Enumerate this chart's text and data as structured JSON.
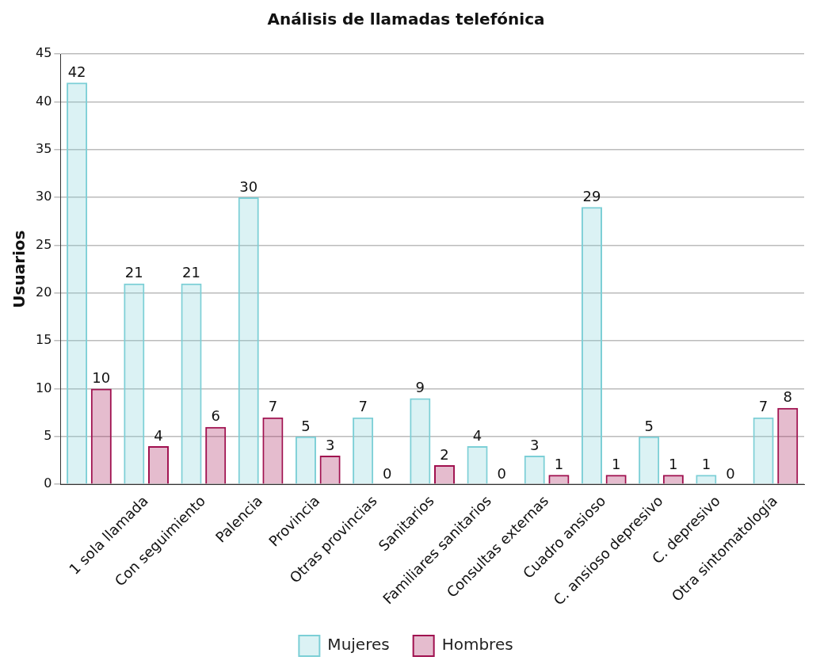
{
  "chart_data": {
    "type": "bar",
    "title": "Análisis de llamadas telefónica",
    "ylabel": "Usuarios",
    "categories": [
      null,
      "1 sola llamada",
      "Con seguimiento",
      "Palencia",
      "Provincia",
      "Otras provincias",
      "Sanitarios",
      "Familiares sanitarios",
      "Consultas externas",
      "Cuadro ansioso",
      "C. ansioso depresivo",
      "C. depresivo",
      "Otra sintomatología"
    ],
    "series": [
      {
        "name": "Mujeres",
        "color": "#7ccfd6",
        "values": [
          42,
          21,
          21,
          30,
          5,
          7,
          9,
          4,
          3,
          29,
          5,
          1,
          7
        ]
      },
      {
        "name": "Hombres",
        "color": "#a0104f",
        "values": [
          10,
          4,
          6,
          7,
          3,
          0,
          2,
          0,
          1,
          1,
          1,
          0,
          8
        ]
      }
    ],
    "ylim": [
      0,
      45
    ],
    "yticks": [
      0,
      5,
      10,
      15,
      20,
      25,
      30,
      35,
      40,
      45
    ],
    "grid": "y",
    "legend": "bottom",
    "data_labels": true
  }
}
